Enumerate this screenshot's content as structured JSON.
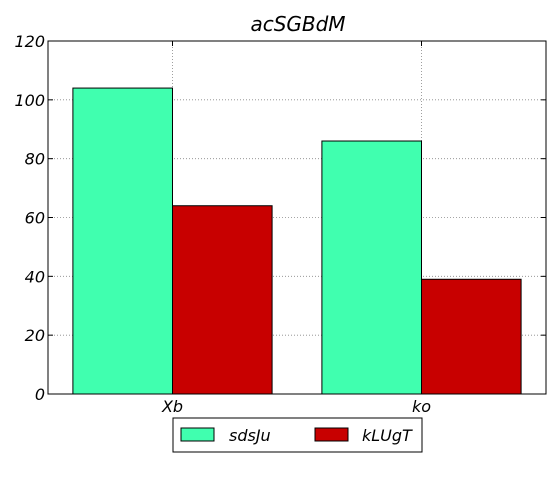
{
  "chart_data": {
    "type": "bar",
    "title": "acSGBdM",
    "xlabel": "",
    "ylabel": "",
    "categories": [
      "Xb",
      "ko"
    ],
    "series": [
      {
        "name": "sdsJu",
        "values": [
          104,
          86
        ],
        "color": "#40ffaf"
      },
      {
        "name": "kLUgT",
        "values": [
          64,
          39
        ],
        "color": "#c80000"
      }
    ],
    "ylim": [
      0,
      120
    ],
    "yticks": [
      0,
      20,
      40,
      60,
      80,
      100,
      120
    ],
    "grid": true,
    "legend_position": "bottom-center"
  }
}
